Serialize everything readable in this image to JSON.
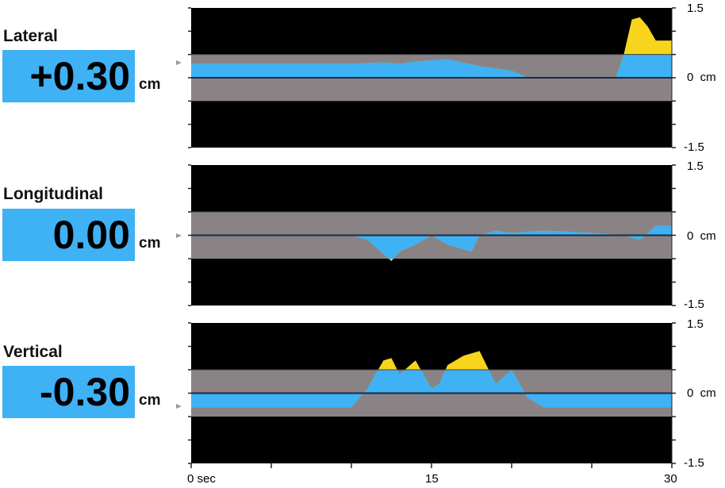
{
  "panels": [
    {
      "name": "Lateral",
      "value": "+0.30",
      "unit": "cm",
      "ymax_label": "1.5",
      "zero_label": "0  cm",
      "ymin_label": "-1.5"
    },
    {
      "name": "Longitudinal",
      "value": "0.00",
      "unit": "cm",
      "ymax_label": "1.5",
      "zero_label": "0  cm",
      "ymin_label": "-1.5"
    },
    {
      "name": "Vertical",
      "value": "-0.30",
      "unit": "cm",
      "ymax_label": "1.5",
      "zero_label": "0  cm",
      "ymin_label": "-1.5"
    }
  ],
  "xaxis": {
    "labels": [
      "0 sec",
      "15",
      "30"
    ]
  },
  "colors": {
    "within": "#3fb1f5",
    "exceed": "#f7d51c",
    "band": "#8a8385",
    "background": "#000000",
    "value_box": "#3fb1f5"
  },
  "chart_data": [
    {
      "type": "area",
      "title": "Lateral",
      "xlabel": "sec",
      "ylabel": "cm",
      "xlim": [
        0,
        30
      ],
      "ylim": [
        -1.5,
        1.5
      ],
      "tolerance_band": [
        -0.5,
        0.5
      ],
      "current_value": 0.3,
      "x": [
        0,
        5,
        10,
        12,
        13,
        14,
        16,
        18,
        20,
        21,
        23,
        25,
        26.5,
        27,
        27.5,
        28,
        28.5,
        29,
        30
      ],
      "values": [
        0.3,
        0.3,
        0.3,
        0.33,
        0.3,
        0.35,
        0.4,
        0.25,
        0.15,
        0.0,
        0.0,
        0.0,
        0.0,
        0.5,
        1.25,
        1.3,
        1.1,
        0.8,
        0.8
      ]
    },
    {
      "type": "area",
      "title": "Longitudinal",
      "xlabel": "sec",
      "ylabel": "cm",
      "xlim": [
        0,
        30
      ],
      "ylim": [
        -1.5,
        1.5
      ],
      "tolerance_band": [
        -0.5,
        0.5
      ],
      "current_value": 0.0,
      "x": [
        0,
        5,
        10,
        11,
        12,
        12.5,
        13,
        14,
        15,
        16,
        17.5,
        18,
        19,
        20,
        22,
        25,
        27,
        28,
        29,
        30
      ],
      "values": [
        0.0,
        0.0,
        0.0,
        -0.1,
        -0.4,
        -0.55,
        -0.35,
        -0.2,
        0.0,
        -0.2,
        -0.35,
        0.0,
        0.1,
        0.05,
        0.1,
        0.05,
        0.0,
        -0.1,
        0.2,
        0.2
      ]
    },
    {
      "type": "area",
      "title": "Vertical",
      "xlabel": "sec",
      "ylabel": "cm",
      "xlim": [
        0,
        30
      ],
      "ylim": [
        -1.5,
        1.5
      ],
      "tolerance_band": [
        -0.5,
        0.5
      ],
      "current_value": -0.3,
      "x": [
        0,
        5,
        10,
        11,
        12,
        12.5,
        13,
        14,
        15,
        15.5,
        16,
        17,
        18,
        19,
        20,
        21,
        22,
        25,
        30
      ],
      "values": [
        -0.3,
        -0.3,
        -0.3,
        0.1,
        0.7,
        0.75,
        0.4,
        0.7,
        0.1,
        0.2,
        0.6,
        0.8,
        0.9,
        0.2,
        0.5,
        -0.1,
        -0.3,
        -0.3,
        -0.3
      ]
    }
  ]
}
